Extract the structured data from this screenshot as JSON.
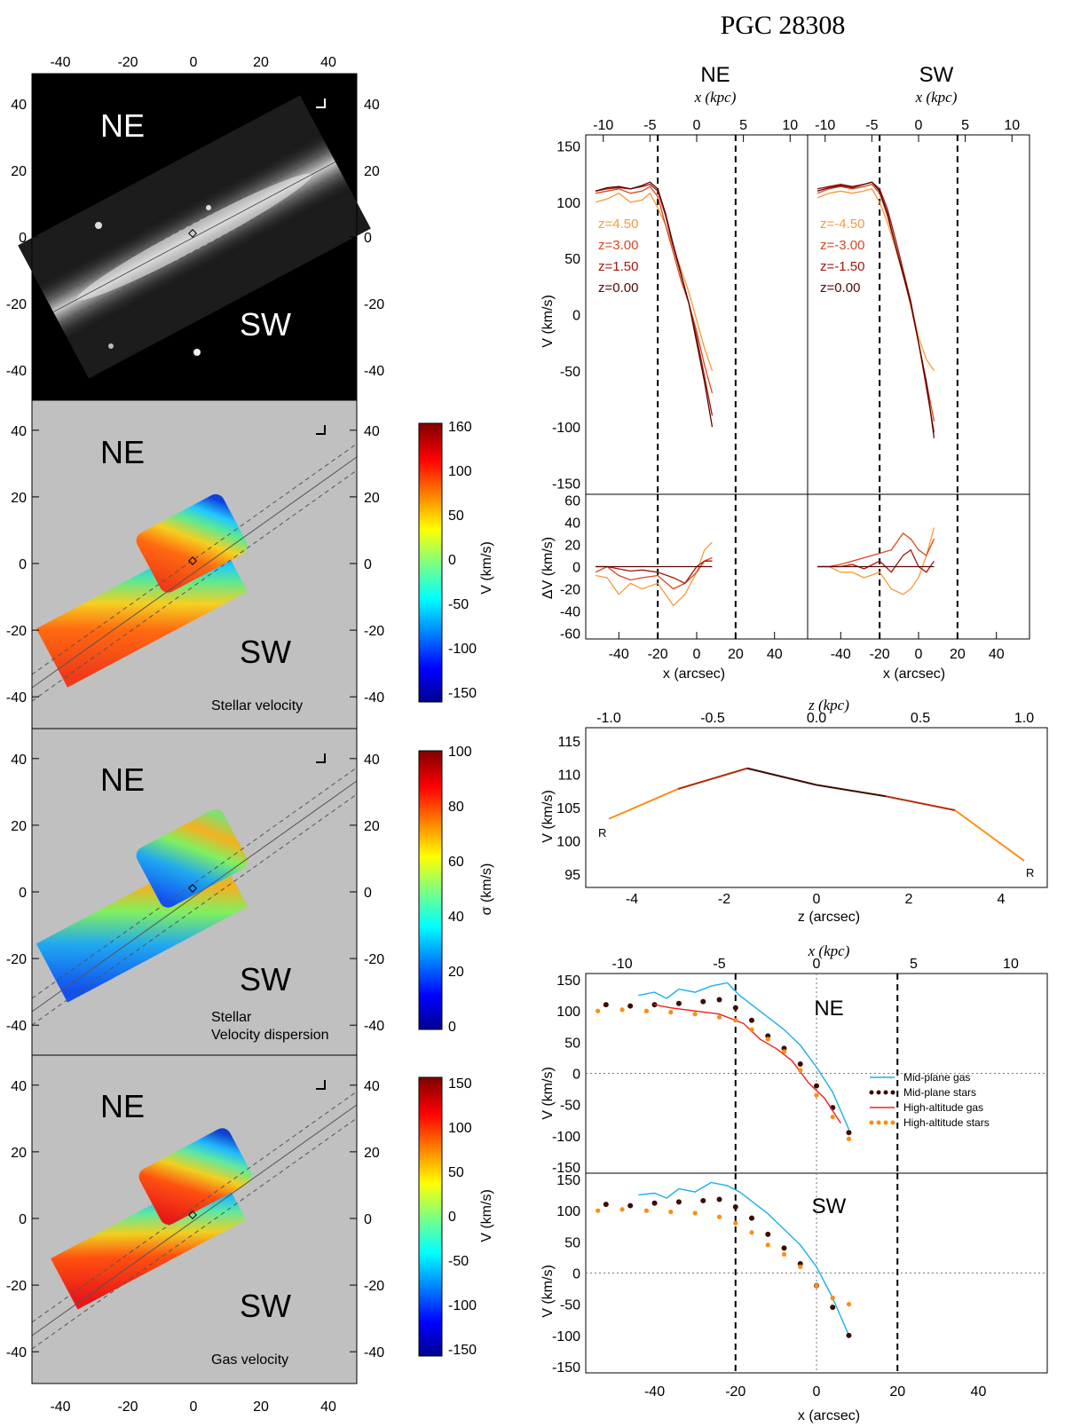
{
  "figure_title": "PGC 28308",
  "colors": {
    "map_background": "#c0c0c0",
    "image_background": "#000000",
    "midplane_gas": "#1ab0e8",
    "midplane_stars": "#3d0b00",
    "high_gas": "#ee2020",
    "high_stars": "#ff8c10",
    "z_colors": [
      "#f59a3b",
      "#d7471c",
      "#a0180c",
      "#5a0505"
    ]
  },
  "left_panels": [
    {
      "id": "image",
      "NE": "NE",
      "SW": "SW",
      "caption": ""
    },
    {
      "id": "stellar-velocity",
      "NE": "NE",
      "SW": "SW",
      "caption": "Stellar velocity",
      "colorbar": {
        "label": "V (km/s)",
        "ticks": [
          "160",
          "100",
          "50",
          "0",
          "-50",
          "-100",
          "-150"
        ]
      }
    },
    {
      "id": "dispersion",
      "NE": "NE",
      "SW": "SW",
      "caption_line1": "Stellar",
      "caption_line2": "Velocity dispersion",
      "colorbar": {
        "label": "σ (km/s)",
        "ticks": [
          "100",
          "80",
          "60",
          "40",
          "20",
          "0"
        ]
      }
    },
    {
      "id": "gas-velocity",
      "NE": "NE",
      "SW": "SW",
      "caption": "Gas velocity",
      "colorbar": {
        "label": "V (km/s)",
        "ticks": [
          "150",
          "100",
          "50",
          "0",
          "-50",
          "-100",
          "-150"
        ]
      }
    }
  ],
  "map_axes": {
    "ticks": [
      "-40",
      "-20",
      "0",
      "20",
      "40"
    ],
    "range": [
      -49,
      49
    ]
  },
  "chart_data": [
    {
      "type": "line",
      "title": "NE",
      "xlabel_top": "x (kpc)",
      "xlabel": "x (arcsec)",
      "ylabel": "V (km/s)",
      "ylabel_resid": "ΔV (km/s)",
      "xlim": [
        -57,
        57
      ],
      "ylim": [
        -160,
        160
      ],
      "ylim_resid": [
        -65,
        65
      ],
      "kpc_ticks": [
        "-10",
        "-5",
        "0",
        "5",
        "10"
      ],
      "x_ticks": [
        "-40",
        "-20",
        "0",
        "20",
        "40"
      ],
      "y_ticks": [
        "150",
        "100",
        "50",
        "0",
        "-50",
        "-100",
        "-150"
      ],
      "resid_ticks": [
        "60",
        "40",
        "20",
        "0",
        "-20",
        "-40",
        "-60"
      ],
      "vlines": [
        -20,
        20
      ],
      "legend": [
        "z=4.50",
        "z=3.00",
        "z=1.50",
        "z=0.00"
      ],
      "series": [
        {
          "name": "z=4.50",
          "x": [
            -52,
            -46,
            -40,
            -34,
            -28,
            -24,
            -20,
            -16,
            -12,
            -8,
            -4,
            0,
            4,
            8
          ],
          "values": [
            100,
            103,
            108,
            100,
            102,
            108,
            95,
            80,
            60,
            40,
            20,
            -5,
            -30,
            -50
          ]
        },
        {
          "name": "z=3.00",
          "x": [
            -52,
            -46,
            -40,
            -34,
            -28,
            -24,
            -20,
            -16,
            -12,
            -8,
            -4,
            0,
            4,
            8
          ],
          "values": [
            108,
            110,
            112,
            108,
            110,
            114,
            105,
            80,
            55,
            30,
            10,
            -15,
            -45,
            -70
          ]
        },
        {
          "name": "z=1.50",
          "x": [
            -52,
            -46,
            -40,
            -34,
            -28,
            -24,
            -20,
            -16,
            -12,
            -8,
            -4,
            0,
            4,
            8
          ],
          "values": [
            110,
            112,
            113,
            112,
            114,
            116,
            110,
            88,
            60,
            35,
            10,
            -20,
            -55,
            -90
          ]
        },
        {
          "name": "z=0.00",
          "x": [
            -52,
            -46,
            -40,
            -34,
            -28,
            -24,
            -20,
            -16,
            -12,
            -8,
            -4,
            0,
            4,
            8
          ],
          "values": [
            110,
            113,
            114,
            112,
            115,
            118,
            112,
            90,
            62,
            36,
            10,
            -25,
            -60,
            -100
          ]
        }
      ],
      "residuals": [
        {
          "name": "z=4.50",
          "x": [
            -52,
            -46,
            -40,
            -34,
            -28,
            -20,
            -12,
            -6,
            0,
            4,
            8
          ],
          "values": [
            -8,
            -10,
            -25,
            -15,
            -20,
            -15,
            -35,
            -25,
            -5,
            15,
            22
          ]
        },
        {
          "name": "z=3.00",
          "x": [
            -52,
            -46,
            -40,
            -34,
            -28,
            -20,
            -12,
            -6,
            0,
            4,
            8
          ],
          "values": [
            -5,
            0,
            -8,
            -12,
            -10,
            -8,
            -20,
            -15,
            -5,
            5,
            8
          ]
        },
        {
          "name": "z=1.50",
          "x": [
            -52,
            -46,
            -40,
            -34,
            -28,
            -20,
            -12,
            -6,
            0,
            4,
            8
          ],
          "values": [
            0,
            0,
            -2,
            -4,
            -3,
            -5,
            -10,
            -15,
            0,
            5,
            5
          ]
        },
        {
          "name": "z=0.00",
          "x": [
            -52,
            8
          ],
          "values": [
            0,
            0
          ]
        }
      ]
    },
    {
      "type": "line",
      "title": "SW",
      "xlabel_top": "x (kpc)",
      "xlabel": "x (arcsec)",
      "xlim": [
        -57,
        57
      ],
      "ylim": [
        -160,
        160
      ],
      "ylim_resid": [
        -65,
        65
      ],
      "vlines": [
        -20,
        20
      ],
      "legend": [
        "z=-4.50",
        "z=-3.00",
        "z=-1.50",
        "z=0.00"
      ],
      "series": [
        {
          "name": "z=-4.50",
          "x": [
            -52,
            -46,
            -40,
            -34,
            -28,
            -24,
            -20,
            -16,
            -12,
            -8,
            -4,
            0,
            4,
            8
          ],
          "values": [
            104,
            108,
            110,
            108,
            110,
            112,
            100,
            82,
            60,
            35,
            10,
            -20,
            -40,
            -50
          ]
        },
        {
          "name": "z=-3.00",
          "x": [
            -52,
            -46,
            -40,
            -34,
            -28,
            -24,
            -20,
            -16,
            -12,
            -8,
            -4,
            0,
            4,
            8
          ],
          "values": [
            108,
            112,
            114,
            112,
            114,
            116,
            108,
            88,
            62,
            36,
            8,
            -25,
            -60,
            -95
          ]
        },
        {
          "name": "z=-1.50",
          "x": [
            -52,
            -46,
            -40,
            -34,
            -28,
            -24,
            -20,
            -16,
            -12,
            -8,
            -4,
            0,
            4,
            8
          ],
          "values": [
            112,
            114,
            116,
            114,
            116,
            118,
            112,
            94,
            68,
            40,
            12,
            -25,
            -65,
            -105
          ]
        },
        {
          "name": "z=0.00",
          "x": [
            -52,
            -46,
            -40,
            -34,
            -28,
            -24,
            -20,
            -16,
            -12,
            -8,
            -4,
            0,
            4,
            8
          ],
          "values": [
            110,
            113,
            115,
            113,
            116,
            118,
            110,
            90,
            62,
            36,
            10,
            -25,
            -60,
            -110
          ]
        }
      ],
      "residuals": [
        {
          "name": "z=-4.50",
          "x": [
            -52,
            -46,
            -40,
            -34,
            -28,
            -20,
            -14,
            -8,
            -4,
            0,
            4,
            8
          ],
          "values": [
            0,
            0,
            -5,
            -5,
            -10,
            -5,
            -20,
            -25,
            -20,
            -10,
            10,
            35
          ]
        },
        {
          "name": "z=-3.00",
          "x": [
            -52,
            -46,
            -40,
            -34,
            -28,
            -20,
            -14,
            -8,
            -4,
            0,
            4,
            8
          ],
          "values": [
            0,
            0,
            2,
            5,
            8,
            12,
            15,
            30,
            25,
            15,
            10,
            25
          ]
        },
        {
          "name": "z=-1.50",
          "x": [
            -52,
            -46,
            -40,
            -34,
            -28,
            -20,
            -14,
            -8,
            -4,
            0,
            4,
            8
          ],
          "values": [
            0,
            0,
            0,
            2,
            -2,
            5,
            -5,
            10,
            15,
            0,
            -5,
            5
          ]
        },
        {
          "name": "z=0.00",
          "x": [
            -52,
            8
          ],
          "values": [
            0,
            0
          ]
        }
      ]
    },
    {
      "type": "line",
      "xlabel_top": "z (kpc)",
      "xlabel": "z (arcsec)",
      "ylabel": "V (km/s)",
      "xlim": [
        -5,
        5
      ],
      "ylim": [
        93,
        117
      ],
      "kpc_ticks": [
        "-1.0",
        "-0.5",
        "0.0",
        "0.5",
        "1.0"
      ],
      "x_ticks": [
        "-4",
        "-2",
        "0",
        "2",
        "4"
      ],
      "y_ticks": [
        "115",
        "110",
        "105",
        "100",
        "95"
      ],
      "marker_label": "R",
      "x": [
        -4.5,
        -3.0,
        -1.5,
        0.0,
        1.5,
        3.0,
        4.5
      ],
      "values": [
        103.3,
        107.8,
        110.9,
        108.4,
        106.7,
        104.6,
        97.0
      ]
    },
    {
      "type": "line",
      "title": "NE",
      "xlabel_top": "x (kpc)",
      "ylabel": "V (km/s)",
      "xlim": [
        -57,
        57
      ],
      "ylim": [
        -160,
        160
      ],
      "kpc_ticks": [
        "-10",
        "-5",
        "0",
        "5",
        "10"
      ],
      "y_ticks": [
        "150",
        "100",
        "50",
        "0",
        "-50",
        "-100",
        "-150"
      ],
      "vlines": [
        -20,
        20
      ],
      "legend": [
        "Mid-plane gas",
        "Mid-plane stars",
        "High-altitude gas",
        "High-altitude stars"
      ],
      "series": [
        {
          "name": "Mid-plane gas",
          "x": [
            -44,
            -40,
            -37,
            -34,
            -30,
            -26,
            -22,
            -19,
            -16,
            -12,
            -8,
            -4,
            0,
            4,
            8
          ],
          "values": [
            125,
            130,
            120,
            135,
            130,
            140,
            145,
            125,
            110,
            90,
            70,
            45,
            10,
            -30,
            -90
          ]
        },
        {
          "name": "Mid-plane stars",
          "x": [
            -52,
            -46,
            -40,
            -34,
            -28,
            -24,
            -20,
            -16,
            -12,
            -8,
            -4,
            0,
            4,
            8
          ],
          "values": [
            110,
            108,
            110,
            112,
            115,
            118,
            105,
            85,
            60,
            40,
            15,
            -20,
            -55,
            -95
          ]
        },
        {
          "name": "High-altitude gas",
          "x": [
            -40,
            -36,
            -30,
            -24,
            -18,
            -14,
            -10,
            -6,
            -2,
            2,
            6
          ],
          "values": [
            110,
            105,
            100,
            95,
            80,
            55,
            40,
            20,
            -15,
            -40,
            -80
          ]
        },
        {
          "name": "High-altitude stars",
          "x": [
            -54,
            -48,
            -42,
            -36,
            -30,
            -24,
            -20,
            -16,
            -12,
            -8,
            -4,
            0,
            4,
            8
          ],
          "values": [
            100,
            102,
            100,
            98,
            95,
            90,
            85,
            70,
            55,
            35,
            5,
            -35,
            -70,
            -105
          ]
        }
      ]
    },
    {
      "type": "line",
      "title": "SW",
      "xlabel": "x (arcsec)",
      "ylabel": "V (km/s)",
      "xlim": [
        -57,
        57
      ],
      "ylim": [
        -160,
        160
      ],
      "x_ticks": [
        "-40",
        "-20",
        "0",
        "20",
        "40"
      ],
      "y_ticks": [
        "150",
        "100",
        "50",
        "0",
        "-50",
        "-100",
        "-150"
      ],
      "vlines": [
        -20,
        20
      ],
      "series": [
        {
          "name": "Mid-plane gas",
          "x": [
            -44,
            -40,
            -37,
            -34,
            -30,
            -26,
            -22,
            -19,
            -16,
            -12,
            -8,
            -4,
            0,
            4,
            8
          ],
          "values": [
            125,
            128,
            120,
            135,
            130,
            145,
            140,
            130,
            115,
            95,
            70,
            45,
            10,
            -40,
            -100
          ]
        },
        {
          "name": "Mid-plane stars",
          "x": [
            -52,
            -46,
            -40,
            -34,
            -28,
            -24,
            -20,
            -16,
            -12,
            -8,
            -4,
            0,
            4,
            8
          ],
          "values": [
            110,
            108,
            112,
            114,
            116,
            118,
            106,
            88,
            62,
            40,
            15,
            -20,
            -55,
            -100
          ]
        },
        {
          "name": "High-altitude stars",
          "x": [
            -54,
            -48,
            -42,
            -36,
            -30,
            -24,
            -20,
            -16,
            -12,
            -8,
            -4,
            0,
            4,
            8
          ],
          "values": [
            100,
            102,
            100,
            98,
            96,
            90,
            80,
            65,
            45,
            30,
            10,
            -20,
            -40,
            -50
          ]
        }
      ]
    }
  ]
}
